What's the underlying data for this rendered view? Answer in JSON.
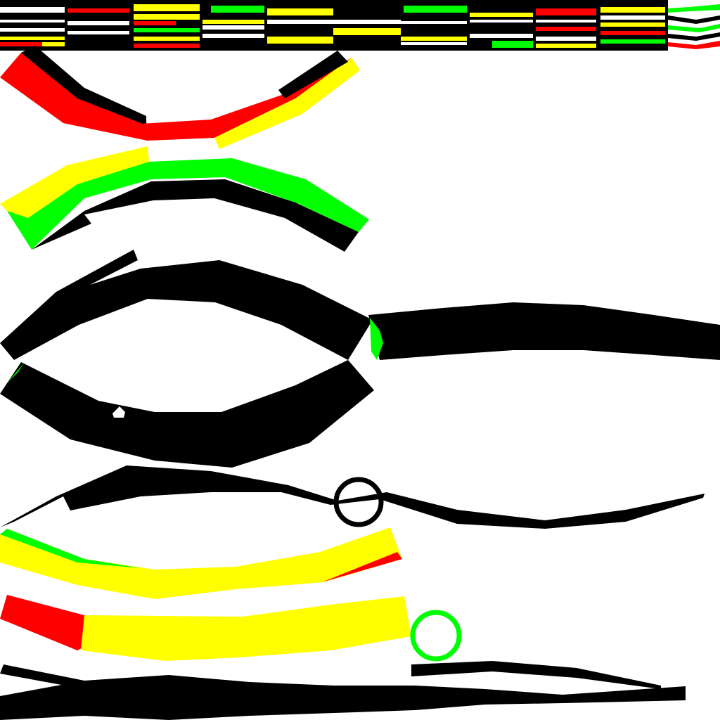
{
  "colors": {
    "background": "#ffffff",
    "black": "#000000",
    "red": "#ff0000",
    "yellow": "#ffff00",
    "green": "#00ff00"
  },
  "palette_strip": {
    "cells": 11,
    "rows": 7
  },
  "shapes": [
    "red-black-yellow-band",
    "yellow-green-black-band",
    "black-band-upper",
    "black-band-lower",
    "black-thin-band",
    "yellow-green-red-band",
    "red-yellow-band",
    "black-bottom-band"
  ],
  "markers": [
    {
      "name": "black-ring",
      "color": "#000000"
    },
    {
      "name": "green-ring",
      "color": "#00ff00"
    }
  ]
}
